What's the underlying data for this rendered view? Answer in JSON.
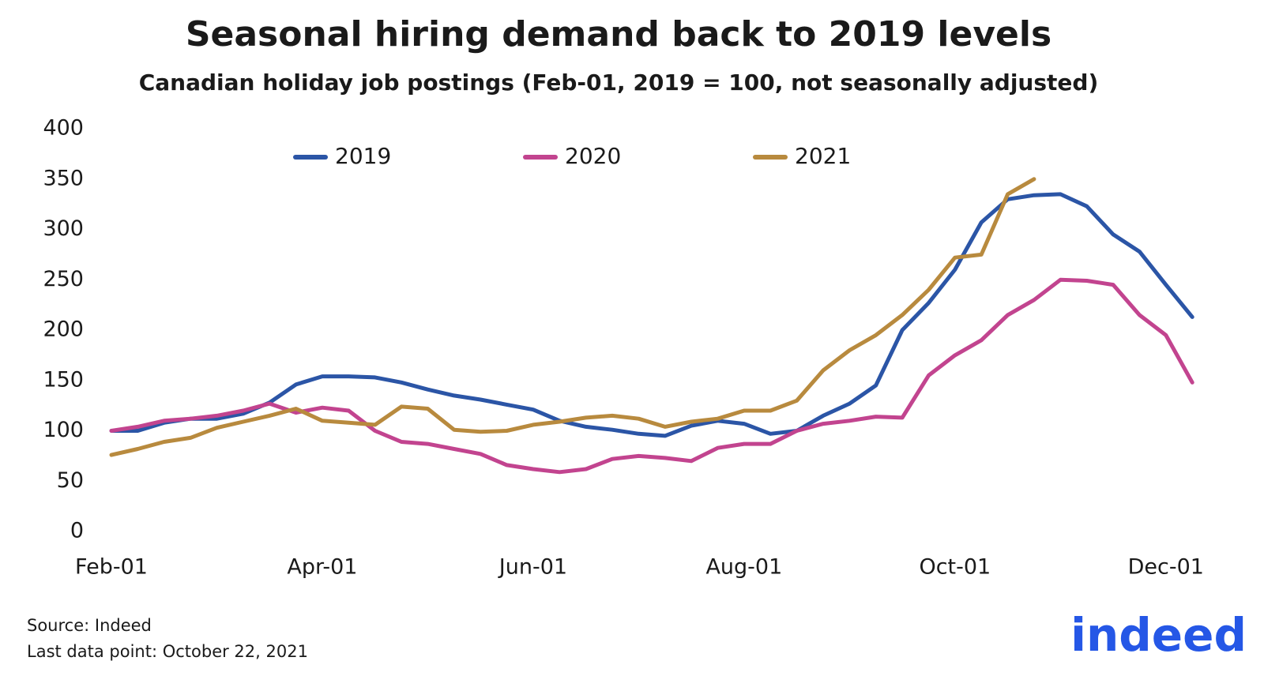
{
  "chart_data": {
    "type": "line",
    "title": "Seasonal hiring demand back to 2019 levels",
    "subtitle": "Canadian holiday job postings (Feb-01, 2019 = 100, not seasonally adjusted)",
    "categories": [
      "Feb-01",
      null,
      null,
      null,
      null,
      null,
      null,
      null,
      "Apr-01",
      null,
      null,
      null,
      null,
      null,
      null,
      null,
      "Jun-01",
      null,
      null,
      null,
      null,
      null,
      null,
      null,
      "Aug-01",
      null,
      null,
      null,
      null,
      null,
      null,
      null,
      "Oct-01",
      null,
      null,
      null,
      null,
      null,
      null,
      null,
      "Dec-01",
      null
    ],
    "series": [
      {
        "name": "2019",
        "color": "#2b55a6",
        "values": [
          100,
          100,
          108,
          112,
          112,
          117,
          128,
          146,
          154,
          154,
          153,
          148,
          141,
          135,
          131,
          126,
          121,
          110,
          104,
          101,
          97,
          95,
          105,
          110,
          107,
          97,
          100,
          115,
          127,
          145,
          200,
          227,
          260,
          307,
          330,
          334,
          335,
          323,
          295,
          278,
          245,
          213
        ]
      },
      {
        "name": "2020",
        "color": "#c2448f",
        "values": [
          100,
          104,
          110,
          112,
          115,
          120,
          127,
          118,
          123,
          120,
          100,
          89,
          87,
          82,
          77,
          66,
          62,
          59,
          62,
          72,
          75,
          73,
          70,
          83,
          87,
          87,
          100,
          107,
          110,
          114,
          113,
          155,
          175,
          190,
          215,
          230,
          250,
          249,
          245,
          215,
          195,
          148
        ]
      },
      {
        "name": "2021",
        "color": "#b88a3e",
        "values": [
          76,
          82,
          89,
          93,
          103,
          109,
          115,
          122,
          110,
          108,
          106,
          124,
          122,
          101,
          99,
          100,
          106,
          109,
          113,
          115,
          112,
          104,
          109,
          112,
          120,
          120,
          130,
          160,
          180,
          195,
          215,
          240,
          272,
          275,
          335,
          350,
          null,
          null,
          null,
          null,
          null,
          null
        ]
      }
    ],
    "ylim": [
      0,
      400
    ],
    "yticks": [
      0,
      50,
      100,
      150,
      200,
      250,
      300,
      350,
      400
    ],
    "grid": false,
    "legend": "top",
    "source": "Source: Indeed",
    "note": "Last data point: October 22, 2021",
    "logo": "indeed"
  }
}
